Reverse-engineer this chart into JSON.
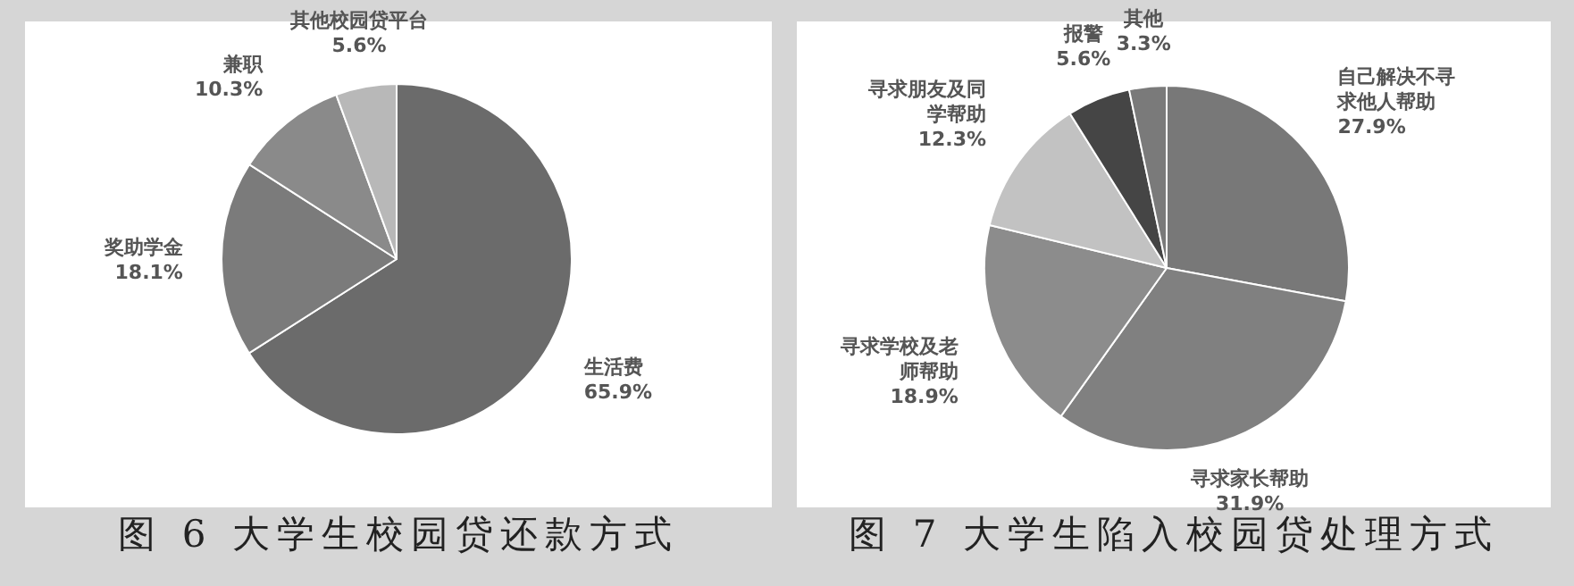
{
  "chart_data": [
    {
      "type": "pie",
      "title": "图 6 大学生校园贷还款方式",
      "categories": [
        "生活费",
        "奖助学金",
        "兼职",
        "其他校园贷平台"
      ],
      "values": [
        65.9,
        18.1,
        10.3,
        5.6
      ],
      "value_labels": [
        "65.9%",
        "18.1%",
        "10.3%",
        "5.6%"
      ],
      "colors": [
        "#6b6b6b",
        "#7b7b7b",
        "#8a8a8a",
        "#b8b8b8"
      ]
    },
    {
      "type": "pie",
      "title": "图 7 大学生陷入校园贷处理方式",
      "categories": [
        "自己解决不寻求他人帮助",
        "寻求家长帮助",
        "寻求学校及老师帮助",
        "寻求朋友及同学帮助",
        "报警",
        "其他"
      ],
      "values": [
        27.9,
        31.9,
        18.9,
        12.3,
        5.6,
        3.3
      ],
      "value_labels": [
        "27.9%",
        "31.9%",
        "18.9%",
        "12.3%",
        "5.6%",
        "3.3%"
      ],
      "colors": [
        "#787878",
        "#808080",
        "#8c8c8c",
        "#c2c2c2",
        "#454545",
        "#7a7a7a"
      ]
    }
  ]
}
